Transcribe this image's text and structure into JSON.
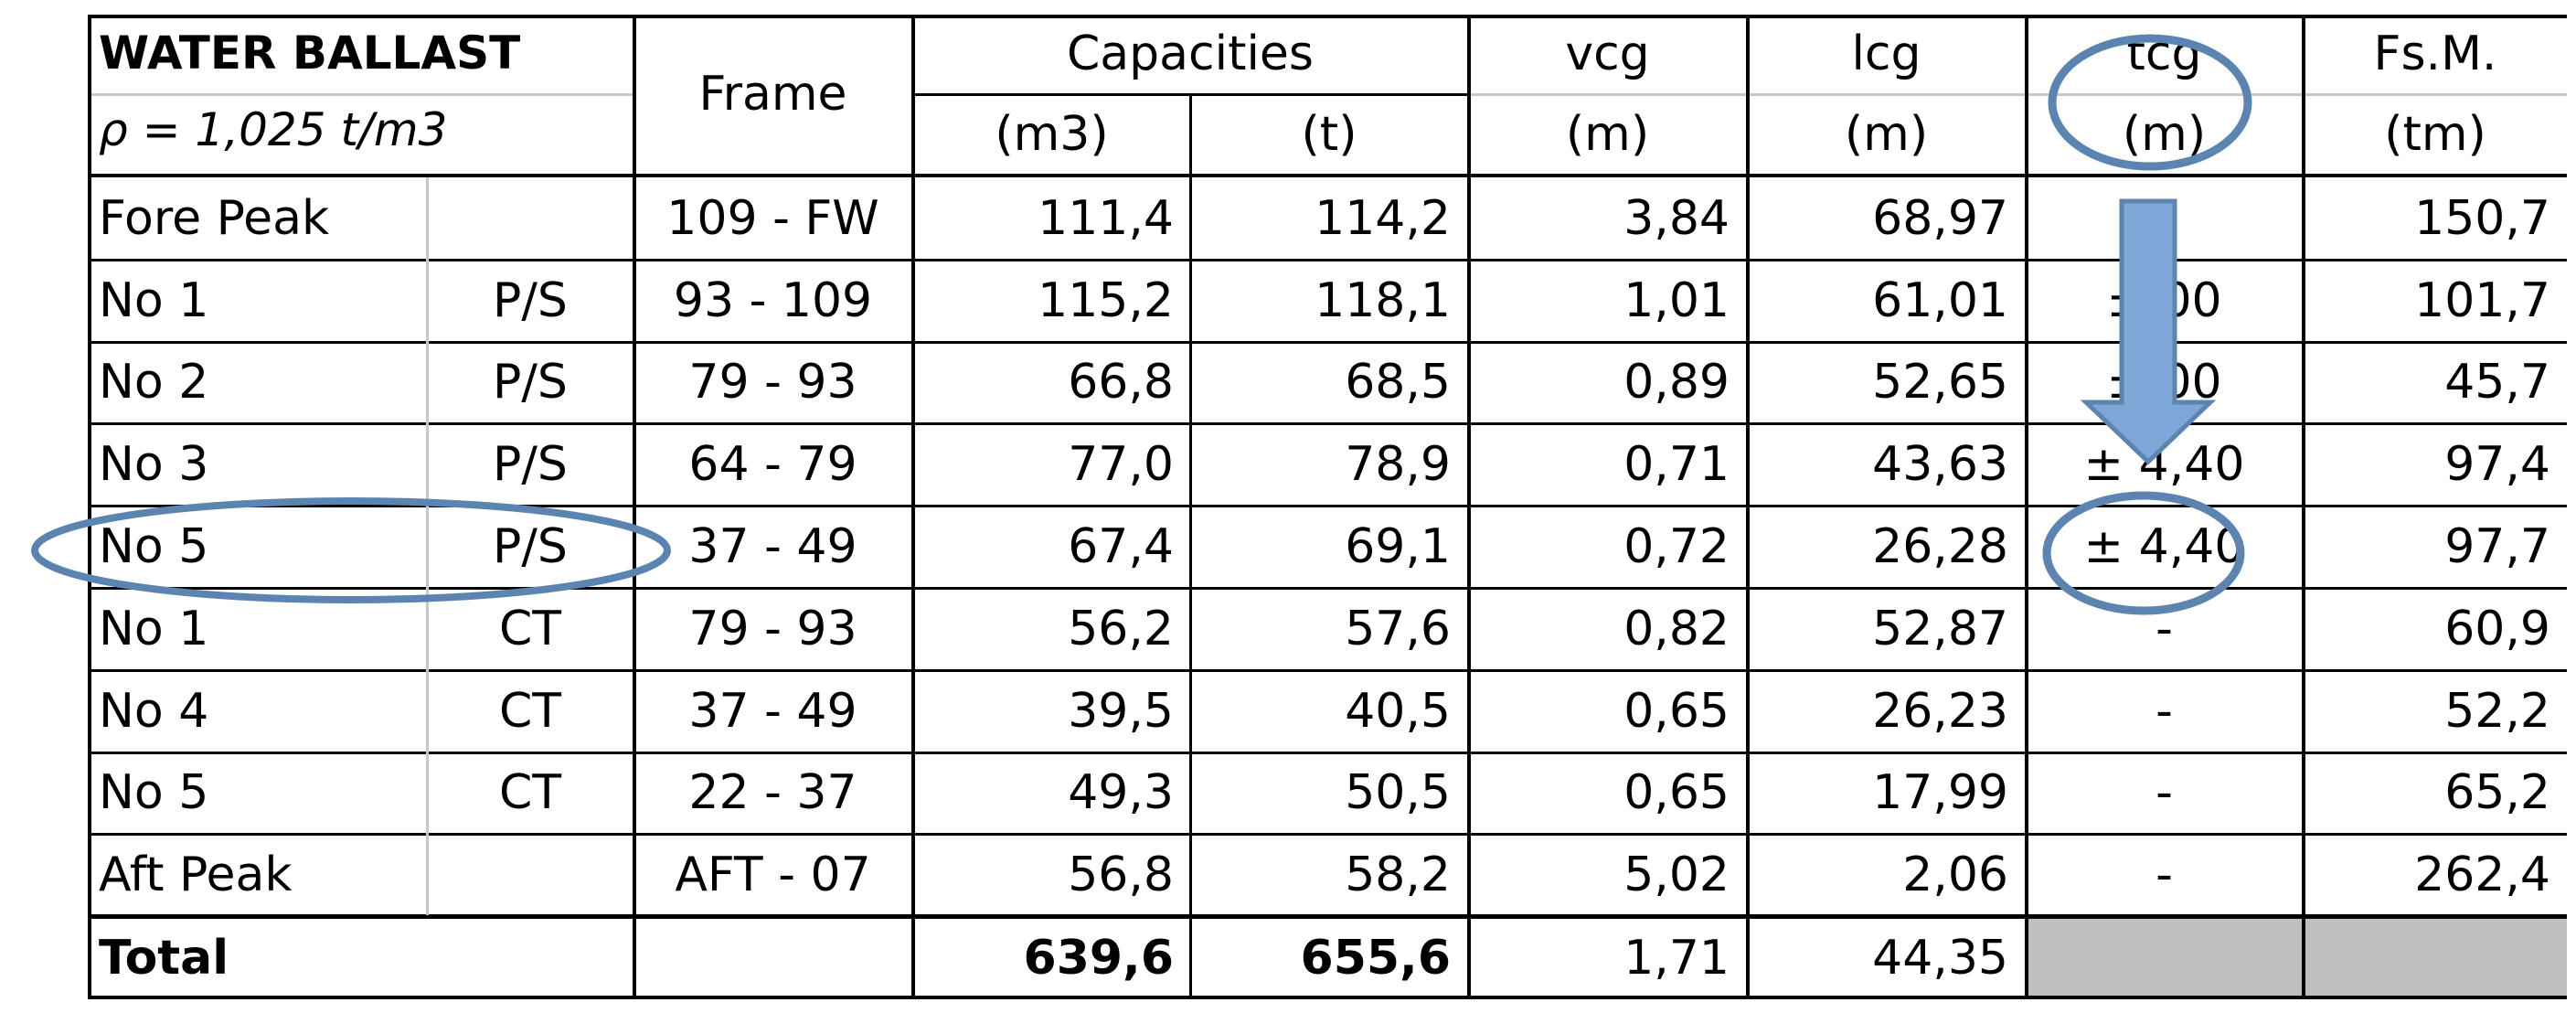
{
  "header": {
    "title": "WATER  BALLAST",
    "density": "ρ  = 1,025 t/m3",
    "frame": "Frame",
    "capacities": "Capacities",
    "vcg": "vcg",
    "lcg": "lcg",
    "tcg": "tcg",
    "fsm": "Fs.M.",
    "unit_m3": "(m3)",
    "unit_t": "(t)",
    "unit_vcg": "(m)",
    "unit_lcg": "(m)",
    "unit_tcg": "(m)",
    "unit_fsm": "(tm)"
  },
  "rows": [
    {
      "name": "Fore Peak",
      "side": "",
      "frame": "109 - FW",
      "m3": "111,4",
      "t": "114,2",
      "vcg": "3,84",
      "lcg": "68,97",
      "tcg": "-",
      "fsm": "150,7"
    },
    {
      "name": "No 1",
      "side": "P/S",
      "frame": "93 - 109",
      "m3": "115,2",
      "t": "118,1",
      "vcg": "1,01",
      "lcg": "61,01",
      "tcg": "± 00",
      "fsm": "101,7"
    },
    {
      "name": "No 2",
      "side": "P/S",
      "frame": "79 - 93",
      "m3": "66,8",
      "t": "68,5",
      "vcg": "0,89",
      "lcg": "52,65",
      "tcg": "± 00",
      "fsm": "45,7"
    },
    {
      "name": "No 3",
      "side": "P/S",
      "frame": "64 - 79",
      "m3": "77,0",
      "t": "78,9",
      "vcg": "0,71",
      "lcg": "43,63",
      "tcg": "± 4,40",
      "fsm": "97,4"
    },
    {
      "name": "No 5",
      "side": "P/S",
      "frame": "37 - 49",
      "m3": "67,4",
      "t": "69,1",
      "vcg": "0,72",
      "lcg": "26,28",
      "tcg": "± 4,40",
      "fsm": "97,7"
    },
    {
      "name": "No 1",
      "side": "CT",
      "frame": "79 - 93",
      "m3": "56,2",
      "t": "57,6",
      "vcg": "0,82",
      "lcg": "52,87",
      "tcg": "-",
      "fsm": "60,9"
    },
    {
      "name": "No 4",
      "side": "CT",
      "frame": "37 - 49",
      "m3": "39,5",
      "t": "40,5",
      "vcg": "0,65",
      "lcg": "26,23",
      "tcg": "-",
      "fsm": "52,2"
    },
    {
      "name": "No 5",
      "side": "CT",
      "frame": "22 - 37",
      "m3": "49,3",
      "t": "50,5",
      "vcg": "0,65",
      "lcg": "17,99",
      "tcg": "-",
      "fsm": "65,2"
    },
    {
      "name": "Aft Peak",
      "side": "",
      "frame": "AFT - 07",
      "m3": "56,8",
      "t": "58,2",
      "vcg": "5,02",
      "lcg": "2,06",
      "tcg": "-",
      "fsm": "262,4"
    }
  ],
  "total": {
    "label": "Total",
    "m3": "639,6",
    "t": "655,6",
    "vcg": "1,71",
    "lcg": "44,35"
  },
  "annotation_color": "#5b84b1",
  "annotation_fill": "#7ea6d6"
}
